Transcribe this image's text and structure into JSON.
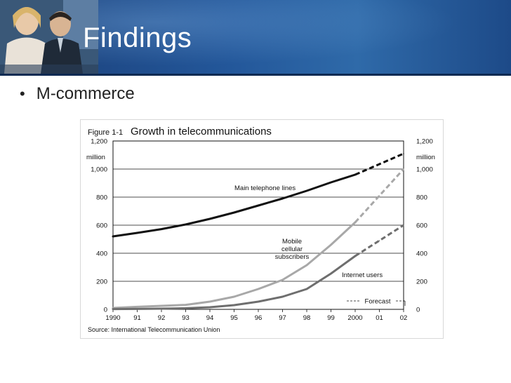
{
  "slide": {
    "title": "Findings",
    "bullet": "M-commerce"
  },
  "figure": {
    "prefix": "Figure 1-1",
    "caption": "Growth in telecommunications",
    "source": "Source: International Telecommunication Union",
    "forecast_label": "Forecast",
    "unit_label_left": "million",
    "unit_label_right": "million"
  },
  "chart_data": {
    "type": "line",
    "title": "Growth in telecommunications",
    "xlabel": "",
    "ylabel": "",
    "x": [
      "1990",
      "91",
      "92",
      "93",
      "94",
      "95",
      "96",
      "97",
      "98",
      "99",
      "2000",
      "01",
      "02"
    ],
    "y_ticks": [
      "0",
      "200",
      "400",
      "600",
      "800",
      "1,000",
      "1,200"
    ],
    "ylim": [
      0,
      1200
    ],
    "grid": true,
    "forecast_from": "2000",
    "series": [
      {
        "name": "Main telephone lines",
        "color": "#111111",
        "values": [
          520,
          545,
          572,
          605,
          645,
          690,
          740,
          790,
          845,
          905,
          960,
          1035,
          1110
        ]
      },
      {
        "name": "Mobile cellular subscribers",
        "color": "#a8a8a8",
        "values": [
          10,
          18,
          25,
          32,
          55,
          90,
          145,
          210,
          315,
          460,
          620,
          810,
          1000
        ]
      },
      {
        "name": "Internet users",
        "color": "#6e6e6e",
        "values": [
          2,
          3,
          5,
          8,
          15,
          30,
          55,
          90,
          145,
          255,
          380,
          490,
          600
        ]
      }
    ],
    "series_label_lines": [
      [
        "Main telephone lines"
      ],
      [
        "Mobile",
        "cellular",
        "subscribers"
      ],
      [
        "Internet users"
      ]
    ]
  }
}
